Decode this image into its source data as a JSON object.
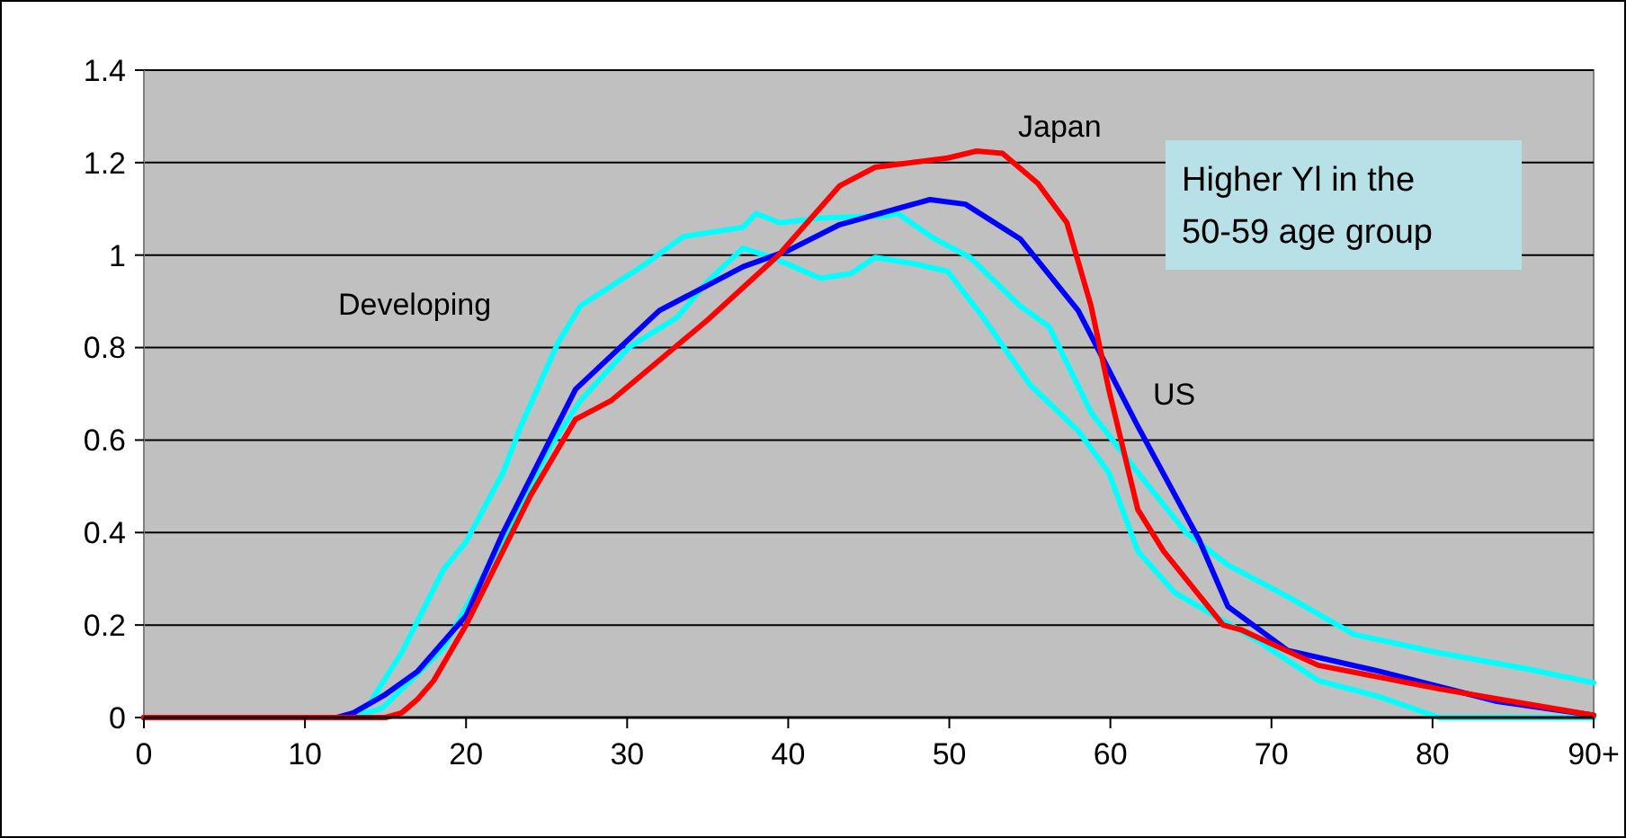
{
  "chart_data": {
    "type": "line",
    "xlim": [
      0,
      90
    ],
    "ylim": [
      0,
      1.4
    ],
    "xticks": [
      0,
      10,
      20,
      30,
      40,
      50,
      60,
      70,
      80,
      {
        "value": 90,
        "label": "90+"
      }
    ],
    "yticks": [
      0,
      0.2,
      0.4,
      0.6,
      0.8,
      1,
      1.2,
      1.4
    ],
    "grid": "y",
    "marker": "none",
    "line_style": "solid",
    "annotations": [
      "Higher Yl in the\n50-59 age group"
    ],
    "series": [
      {
        "name": "Developing",
        "color": "#00ffff",
        "x": [
          0,
          12,
          13,
          14,
          16,
          18.6,
          20,
          22.3,
          23.4,
          25.7,
          27.1,
          30.9,
          33.5,
          37.2,
          38,
          39.5,
          42,
          46.1,
          46.8,
          49.1,
          51.3,
          54.4,
          56.2,
          58.8,
          61.7,
          64.7,
          67.3,
          71.1,
          75.1,
          80.4,
          85.9,
          90
        ],
        "values": [
          0,
          0,
          0,
          0.03,
          0.14,
          0.32,
          0.38,
          0.53,
          0.63,
          0.81,
          0.89,
          0.975,
          1.04,
          1.06,
          1.09,
          1.07,
          1.08,
          1.085,
          1.09,
          1.035,
          0.995,
          0.89,
          0.845,
          0.66,
          0.53,
          0.4,
          0.33,
          0.26,
          0.18,
          0.14,
          0.105,
          0.075
        ]
      },
      {
        "color": "#00ffff",
        "x": [
          0,
          13,
          14.8,
          18.6,
          22.3,
          25.3,
          27.1,
          30.1,
          33.1,
          34.9,
          37.2,
          39,
          42,
          43.9,
          45.4,
          48,
          49.9,
          52.1,
          55,
          58,
          59.9,
          61.7,
          64,
          65.5,
          69.2,
          72.9,
          76.7,
          80.4,
          90
        ],
        "values": [
          0,
          0,
          0.02,
          0.15,
          0.385,
          0.59,
          0.685,
          0.8,
          0.865,
          0.94,
          1.015,
          0.995,
          0.95,
          0.96,
          0.995,
          0.98,
          0.965,
          0.865,
          0.72,
          0.62,
          0.53,
          0.36,
          0.27,
          0.24,
          0.165,
          0.08,
          0.045,
          0,
          0
        ]
      },
      {
        "name": "US",
        "color": "#0000ff",
        "x": [
          0,
          12,
          13,
          15,
          17,
          20,
          22.3,
          26.8,
          32,
          37.2,
          40,
          43.2,
          48.8,
          51,
          54.4,
          58,
          61.7,
          65.5,
          67.3,
          71,
          76.7,
          84,
          90
        ],
        "values": [
          0,
          0,
          0.01,
          0.05,
          0.1,
          0.22,
          0.4,
          0.71,
          0.88,
          0.975,
          1.01,
          1.066,
          1.12,
          1.11,
          1.035,
          0.88,
          0.63,
          0.385,
          0.24,
          0.145,
          0.1,
          0.035,
          0.005
        ]
      },
      {
        "name": "Japan",
        "color": "#ff0000",
        "x": [
          0,
          15,
          16,
          17,
          18,
          20,
          22,
          24,
          26.8,
          29,
          35,
          39.4,
          43.2,
          45.4,
          49.9,
          51.7,
          53.3,
          55.5,
          57.3,
          58.8,
          59.9,
          61.7,
          63.3,
          67,
          68.1,
          72.9,
          80.4,
          90
        ],
        "values": [
          0,
          0,
          0.01,
          0.04,
          0.08,
          0.2,
          0.34,
          0.48,
          0.645,
          0.685,
          0.86,
          1,
          1.15,
          1.19,
          1.21,
          1.225,
          1.22,
          1.155,
          1.07,
          0.89,
          0.71,
          0.45,
          0.36,
          0.2,
          0.19,
          0.113,
          0.062,
          0.005
        ]
      }
    ]
  }
}
